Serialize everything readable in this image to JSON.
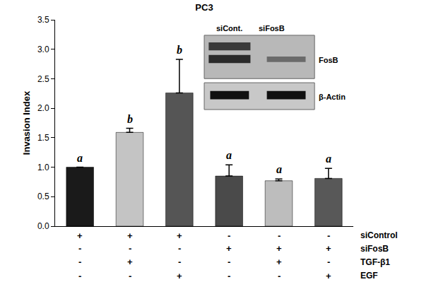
{
  "chart_data": {
    "type": "bar",
    "title": "PC3",
    "y_label": "Invasion Index",
    "categories": [
      null,
      null,
      null,
      null,
      null,
      null
    ],
    "values": [
      1.0,
      1.59,
      2.26,
      0.85,
      0.77,
      0.81
    ],
    "errors": [
      0,
      0.07,
      0.57,
      0.19,
      0.03,
      0.17
    ],
    "colors": [
      "#1a1a1a",
      "#c4c4c4",
      "#555555",
      "#4a4a4a",
      "#bdbdbd",
      "#585858"
    ],
    "significance": [
      "a",
      "b",
      "b",
      "a",
      "a",
      "a"
    ],
    "treatment_table": [
      {
        "label": "siControl",
        "marks": [
          "+",
          "+",
          "+",
          "-",
          "-",
          "-"
        ]
      },
      {
        "label": "siFosB",
        "marks": [
          "-",
          "-",
          "-",
          "+",
          "+",
          "+"
        ]
      },
      {
        "label": "TGF-β1",
        "marks": [
          "-",
          "+",
          "-",
          "-",
          "+",
          "-"
        ]
      },
      {
        "label": "EGF",
        "marks": [
          "-",
          "-",
          "+",
          "-",
          "-",
          "+"
        ]
      }
    ],
    "inset": {
      "lanes": [
        "siCont.",
        "siFosB"
      ],
      "bands": [
        "FosB",
        "β-Actin"
      ]
    },
    "ylim": [
      0,
      3.5
    ],
    "yticks": [
      {
        "value": 0,
        "label": "0.0"
      },
      {
        "value": 0.5,
        "label": "0.5"
      },
      {
        "value": 1,
        "label": "1.0"
      },
      {
        "value": 1.5,
        "label": "1.5"
      },
      {
        "value": 2,
        "label": "2.0"
      },
      {
        "value": 2.5,
        "label": "2.5"
      },
      {
        "value": 3,
        "label": "3.0"
      },
      {
        "value": 3.5,
        "label": "3.5"
      }
    ],
    "grid": false
  }
}
